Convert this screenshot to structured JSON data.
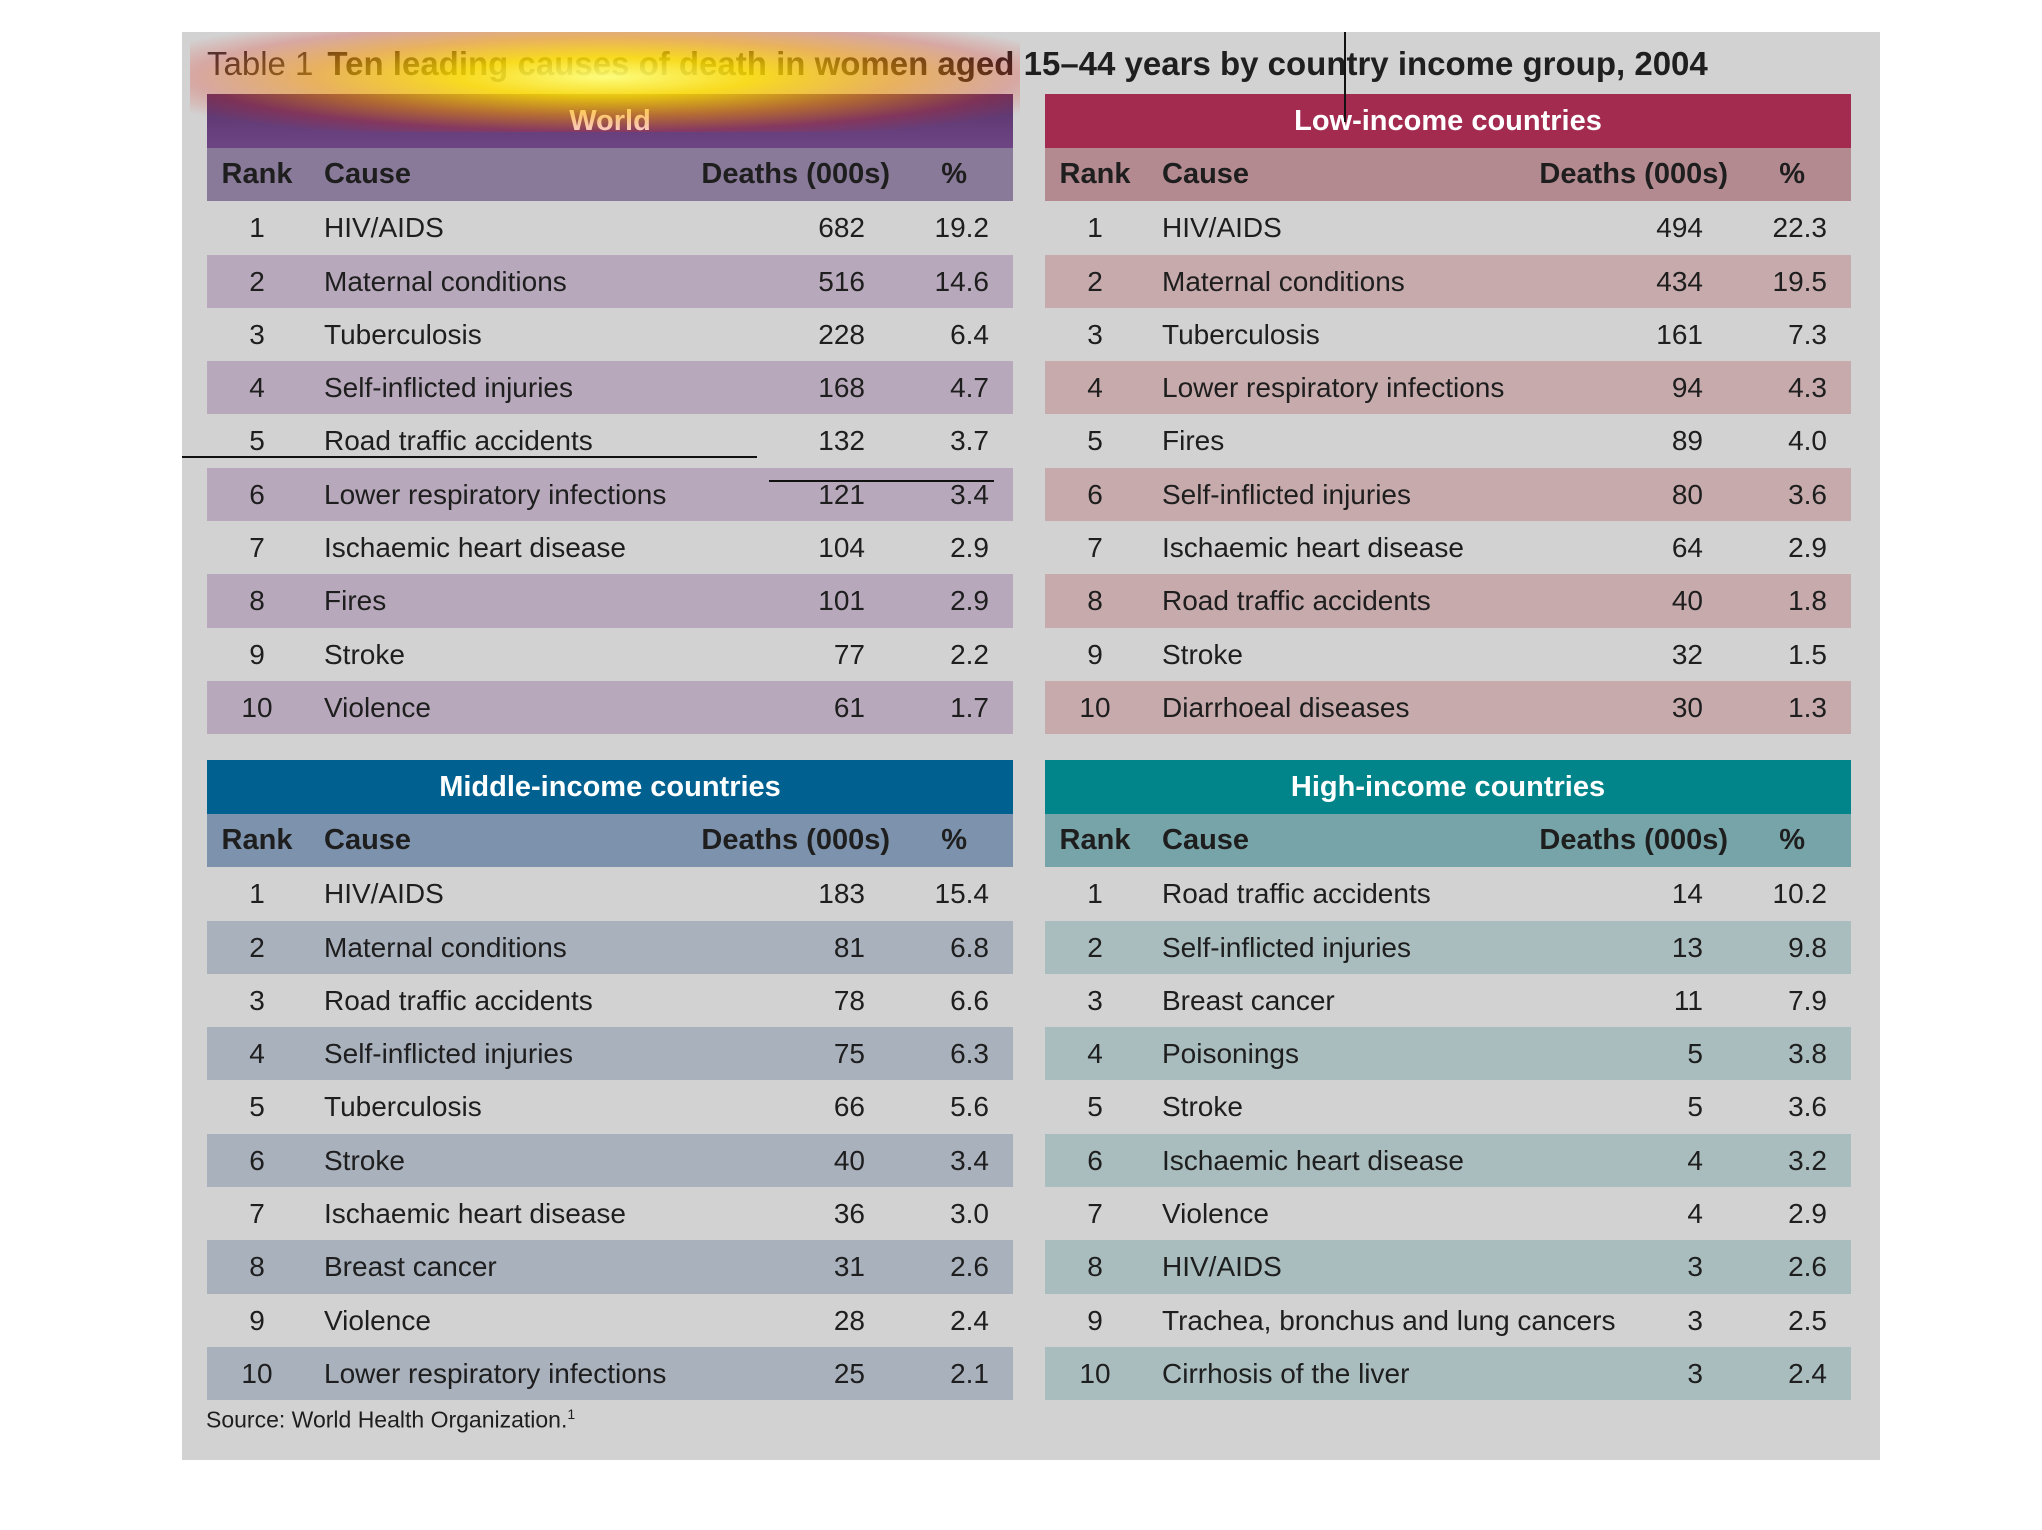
{
  "title": {
    "label": "Table 1",
    "text": "Ten leading causes of death in women aged 15–44 years by country income group, 2004"
  },
  "columns": {
    "rank": "Rank",
    "cause": "Cause",
    "deaths": "Deaths (000s)",
    "pct": "%"
  },
  "world": {
    "heading": "World",
    "rows": [
      {
        "rank": "1",
        "cause": "HIV/AIDS",
        "deaths": "682",
        "pct": "19.2"
      },
      {
        "rank": "2",
        "cause": "Maternal conditions",
        "deaths": "516",
        "pct": "14.6"
      },
      {
        "rank": "3",
        "cause": "Tuberculosis",
        "deaths": "228",
        "pct": "6.4"
      },
      {
        "rank": "4",
        "cause": "Self-inflicted injuries",
        "deaths": "168",
        "pct": "4.7"
      },
      {
        "rank": "5",
        "cause": "Road traffic accidents",
        "deaths": "132",
        "pct": "3.7"
      },
      {
        "rank": "6",
        "cause": "Lower respiratory infections",
        "deaths": "121",
        "pct": "3.4"
      },
      {
        "rank": "7",
        "cause": "Ischaemic heart disease",
        "deaths": "104",
        "pct": "2.9"
      },
      {
        "rank": "8",
        "cause": "Fires",
        "deaths": "101",
        "pct": "2.9"
      },
      {
        "rank": "9",
        "cause": "Stroke",
        "deaths": "77",
        "pct": "2.2"
      },
      {
        "rank": "10",
        "cause": "Violence",
        "deaths": "61",
        "pct": "1.7"
      }
    ]
  },
  "low": {
    "heading": "Low-income countries",
    "rows": [
      {
        "rank": "1",
        "cause": "HIV/AIDS",
        "deaths": "494",
        "pct": "22.3"
      },
      {
        "rank": "2",
        "cause": "Maternal conditions",
        "deaths": "434",
        "pct": "19.5"
      },
      {
        "rank": "3",
        "cause": "Tuberculosis",
        "deaths": "161",
        "pct": "7.3"
      },
      {
        "rank": "4",
        "cause": "Lower respiratory infections",
        "deaths": "94",
        "pct": "4.3"
      },
      {
        "rank": "5",
        "cause": "Fires",
        "deaths": "89",
        "pct": "4.0"
      },
      {
        "rank": "6",
        "cause": "Self-inflicted injuries",
        "deaths": "80",
        "pct": "3.6"
      },
      {
        "rank": "7",
        "cause": "Ischaemic heart disease",
        "deaths": "64",
        "pct": "2.9"
      },
      {
        "rank": "8",
        "cause": "Road traffic accidents",
        "deaths": "40",
        "pct": "1.8"
      },
      {
        "rank": "9",
        "cause": "Stroke",
        "deaths": "32",
        "pct": "1.5"
      },
      {
        "rank": "10",
        "cause": "Diarrhoeal diseases",
        "deaths": "30",
        "pct": "1.3"
      }
    ]
  },
  "middle": {
    "heading": "Middle-income countries",
    "rows": [
      {
        "rank": "1",
        "cause": "HIV/AIDS",
        "deaths": "183",
        "pct": "15.4"
      },
      {
        "rank": "2",
        "cause": "Maternal conditions",
        "deaths": "81",
        "pct": "6.8"
      },
      {
        "rank": "3",
        "cause": "Road traffic accidents",
        "deaths": "78",
        "pct": "6.6"
      },
      {
        "rank": "4",
        "cause": "Self-inflicted injuries",
        "deaths": "75",
        "pct": "6.3"
      },
      {
        "rank": "5",
        "cause": "Tuberculosis",
        "deaths": "66",
        "pct": "5.6"
      },
      {
        "rank": "6",
        "cause": "Stroke",
        "deaths": "40",
        "pct": "3.4"
      },
      {
        "rank": "7",
        "cause": "Ischaemic heart disease",
        "deaths": "36",
        "pct": "3.0"
      },
      {
        "rank": "8",
        "cause": "Breast cancer",
        "deaths": "31",
        "pct": "2.6"
      },
      {
        "rank": "9",
        "cause": "Violence",
        "deaths": "28",
        "pct": "2.4"
      },
      {
        "rank": "10",
        "cause": "Lower respiratory infections",
        "deaths": "25",
        "pct": "2.1"
      }
    ]
  },
  "high": {
    "heading": "High-income countries",
    "rows": [
      {
        "rank": "1",
        "cause": "Road traffic accidents",
        "deaths": "14",
        "pct": "10.2"
      },
      {
        "rank": "2",
        "cause": "Self-inflicted injuries",
        "deaths": "13",
        "pct": "9.8"
      },
      {
        "rank": "3",
        "cause": "Breast cancer",
        "deaths": "11",
        "pct": "7.9"
      },
      {
        "rank": "4",
        "cause": "Poisonings",
        "deaths": "5",
        "pct": "3.8"
      },
      {
        "rank": "5",
        "cause": "Stroke",
        "deaths": "5",
        "pct": "3.6"
      },
      {
        "rank": "6",
        "cause": "Ischaemic heart disease",
        "deaths": "4",
        "pct": "3.2"
      },
      {
        "rank": "7",
        "cause": "Violence",
        "deaths": "4",
        "pct": "2.9"
      },
      {
        "rank": "8",
        "cause": "HIV/AIDS",
        "deaths": "3",
        "pct": "2.6"
      },
      {
        "rank": "9",
        "cause": "Trachea, bronchus and lung cancers",
        "deaths": "3",
        "pct": "2.5"
      },
      {
        "rank": "10",
        "cause": "Cirrhosis of the liver",
        "deaths": "3",
        "pct": "2.4"
      }
    ]
  },
  "source": {
    "text": "Source: World Health Organization.",
    "note": "1"
  }
}
